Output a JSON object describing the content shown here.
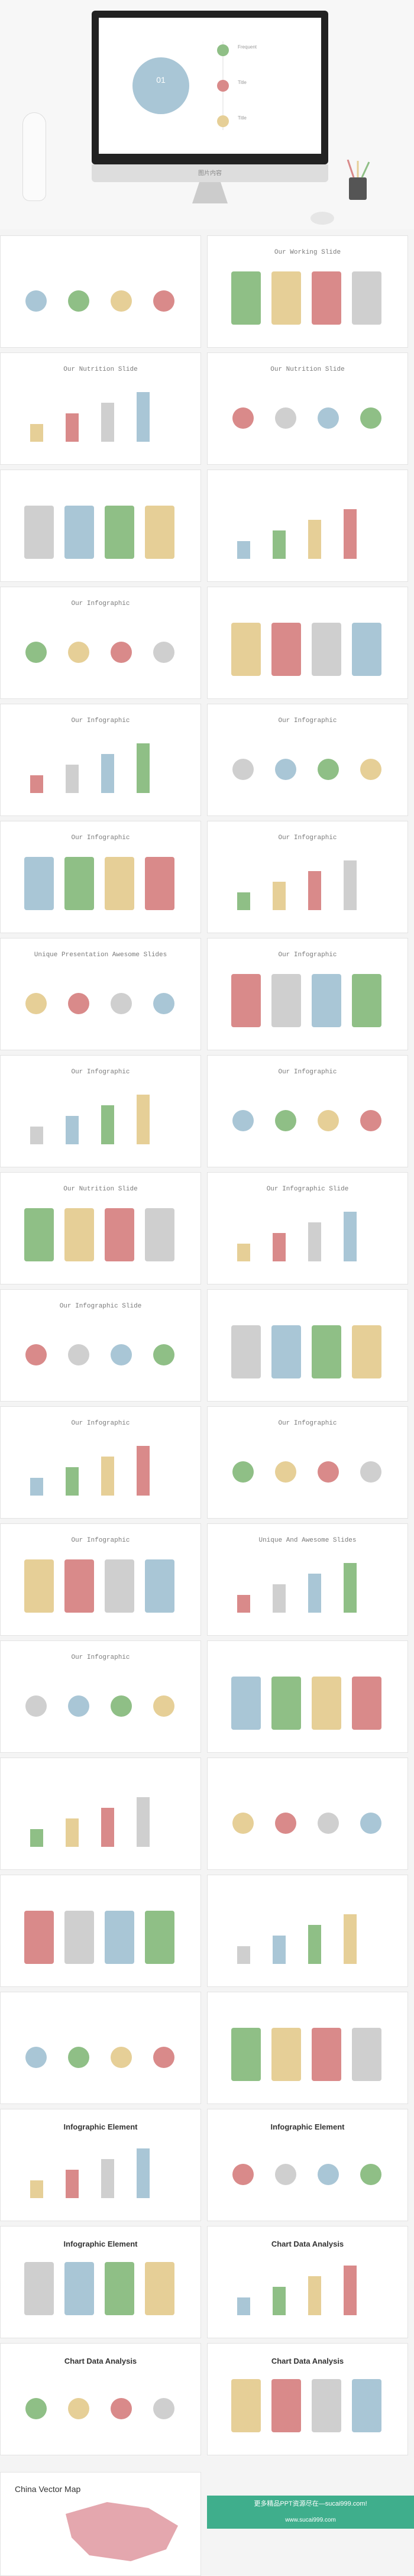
{
  "hero": {
    "screen_number": "01",
    "caption": "图片内容",
    "items": [
      "Frequent",
      "Title",
      "Title"
    ]
  },
  "slides": [
    {
      "title": ""
    },
    {
      "title": "Our Working Slide"
    },
    {
      "title": "Our Nutrition Slide"
    },
    {
      "title": "Our Nutrition Slide"
    },
    {
      "title": ""
    },
    {
      "title": ""
    },
    {
      "title": "Our Infographic"
    },
    {
      "title": ""
    },
    {
      "title": "Our Infographic"
    },
    {
      "title": "Our Infographic"
    },
    {
      "title": "Our Infographic"
    },
    {
      "title": "Our Infographic"
    },
    {
      "title": "Unique Presentation Awesome Slides"
    },
    {
      "title": "Our Infographic"
    },
    {
      "title": "Our Infographic"
    },
    {
      "title": "Our Infographic"
    },
    {
      "title": "Our Nutrition Slide"
    },
    {
      "title": "Our Infographic Slide"
    },
    {
      "title": "Our Infographic Slide"
    },
    {
      "title": ""
    },
    {
      "title": "Our Infographic"
    },
    {
      "title": "Our Infographic"
    },
    {
      "title": "Our Infographic"
    },
    {
      "title": "Unique And Awesome Slides"
    },
    {
      "title": "Our Infographic"
    },
    {
      "title": ""
    },
    {
      "title": ""
    },
    {
      "title": ""
    },
    {
      "title": ""
    },
    {
      "title": ""
    },
    {
      "title": ""
    },
    {
      "title": ""
    },
    {
      "title": "Infographic Element"
    },
    {
      "title": "Infographic Element"
    },
    {
      "title": "Infographic Element"
    },
    {
      "title": "Chart Data Analysis"
    },
    {
      "title": "Chart Data Analysis"
    },
    {
      "title": "Chart Data Analysis"
    }
  ],
  "map_title": "China Vector Map",
  "banner": {
    "line1": "更多精品PPT资源尽在—sucai999.com!",
    "line2": "www.sucai999.com"
  },
  "colors": {
    "blue": "#a9c6d6",
    "green": "#8fbf86",
    "yellow": "#e6cf97",
    "red": "#d98a8a",
    "gray": "#cfcfcf",
    "teal": "#3fae8c"
  }
}
